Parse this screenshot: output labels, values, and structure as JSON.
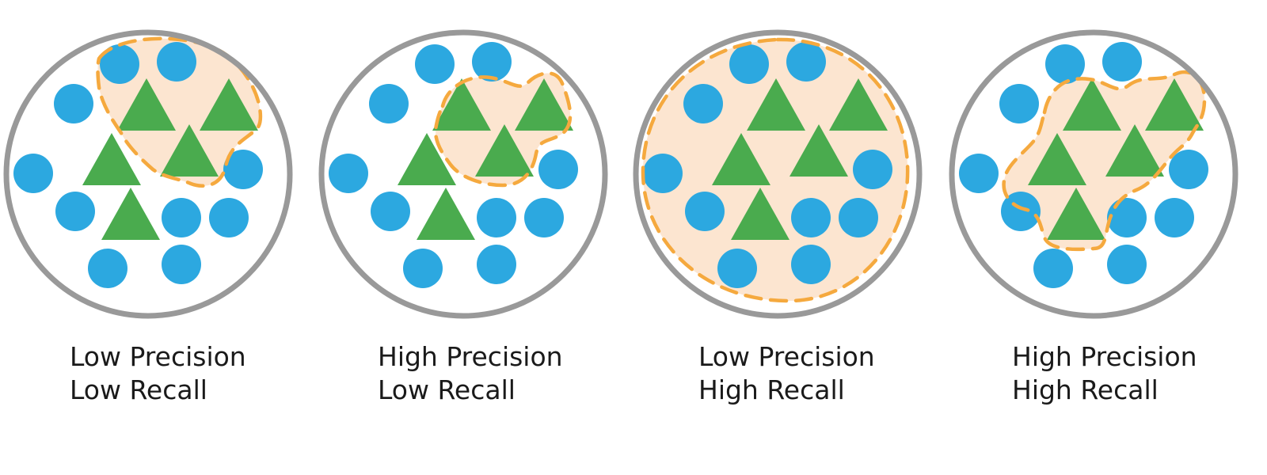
{
  "colors": {
    "circle_stroke": "#999999",
    "dot": "#2ca8e0",
    "triangle": "#4aab4e",
    "selection_fill": "#fce5d0",
    "selection_stroke": "#f5a93e"
  },
  "panels": [
    {
      "line1": "Low Precision",
      "line2": "Low Recall"
    },
    {
      "line1": "High Precision",
      "line2": "Low Recall"
    },
    {
      "line1": "Low Precision",
      "line2": "High Recall"
    },
    {
      "line1": "High Precision",
      "line2": "High Recall"
    }
  ]
}
